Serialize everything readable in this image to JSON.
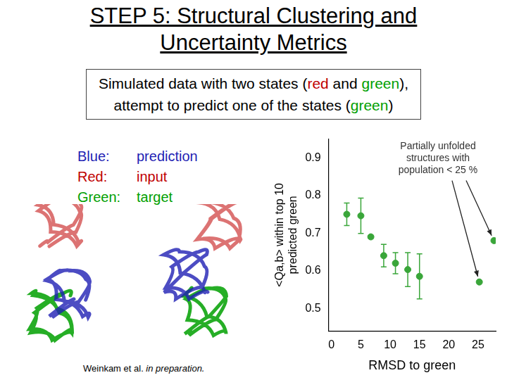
{
  "slide": {
    "title": [
      "STEP 5: Structural Clustering and",
      "Uncertainty Metrics"
    ],
    "subtitle": [
      [
        {
          "text": "Simulated data with two states ("
        },
        {
          "text": "red",
          "color": "#c00000"
        },
        {
          "text": " and "
        },
        {
          "text": "green",
          "color": "#00a000"
        },
        {
          "text": "),"
        }
      ],
      [
        {
          "text": "attempt to predict one of the states ("
        },
        {
          "text": "green",
          "color": "#00a000"
        },
        {
          "text": ")"
        }
      ]
    ],
    "legend": [
      {
        "label": "Blue:",
        "text": "prediction",
        "color": "#1f1fb4"
      },
      {
        "label": "Red:",
        "text": "input",
        "color": "#c00000"
      },
      {
        "label": "Green:",
        "text": "target",
        "color": "#00a000"
      }
    ],
    "citation": [
      {
        "text": "Weinkam et al. "
      },
      {
        "text": "in preparation.",
        "italic": true
      }
    ]
  },
  "chart_data": {
    "type": "scatter",
    "xlabel": "RMSD to green",
    "ylabel": [
      "<Qa,b> within top 10",
      "predicted green"
    ],
    "x": [
      2.6,
      5.0,
      6.7,
      8.9,
      10.9,
      13.0,
      15.0,
      25.2,
      27.7
    ],
    "values": [
      0.75,
      0.746,
      0.69,
      0.64,
      0.62,
      0.603,
      0.585,
      0.57,
      0.68
    ],
    "errors": [
      0.03,
      0.047,
      0.004,
      0.03,
      0.028,
      0.045,
      0.06,
      0,
      0
    ],
    "color": "#3aa63a",
    "marker": "circle",
    "xlim": [
      -0.5,
      28
    ],
    "xticks": [
      0,
      5,
      10,
      15,
      20,
      25
    ],
    "ylim": [
      0.44,
      0.95
    ],
    "yticks": [
      0.5,
      0.6,
      0.7,
      0.8,
      0.9
    ],
    "grid": false,
    "annotation": {
      "text": [
        "Partially unfolded",
        "structures with",
        "population < 25 %"
      ],
      "points": [
        7,
        8
      ]
    }
  }
}
